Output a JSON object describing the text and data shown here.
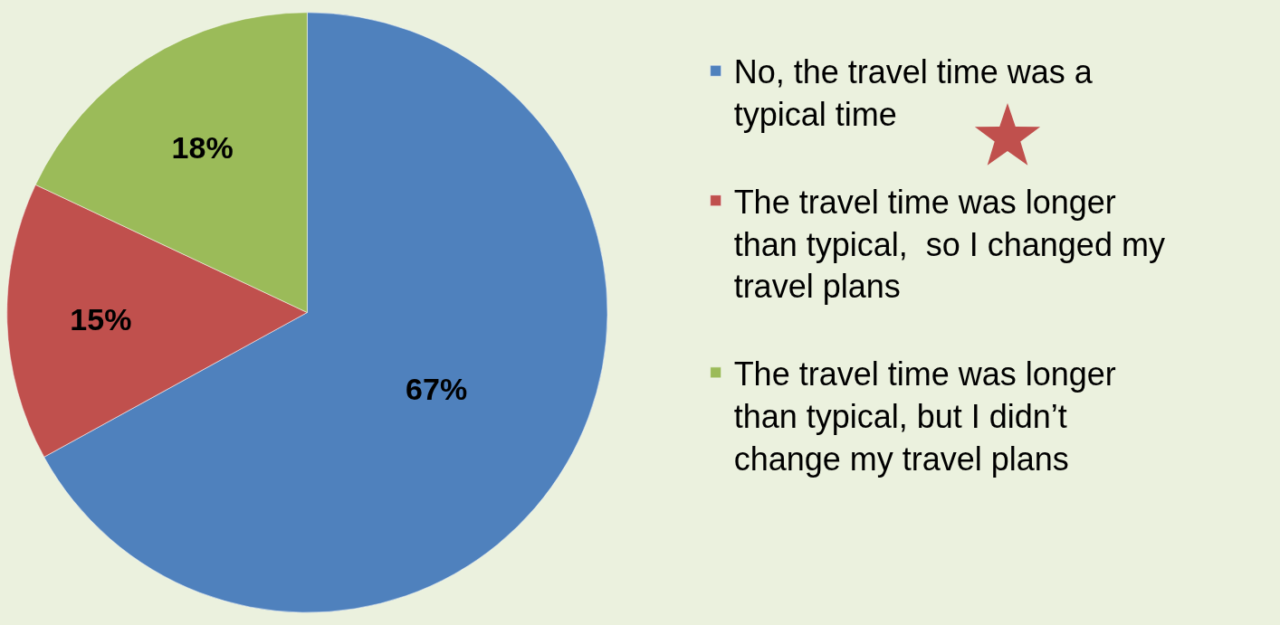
{
  "chart_data": {
    "type": "pie",
    "categories": [
      "No, the travel time was a typical time",
      "The travel time was longer than typical,  so I changed my travel plans",
      "The travel time was longer than typical, but I didn’t change my travel plans"
    ],
    "values": [
      67,
      15,
      18
    ],
    "colors": [
      "#4f81bd",
      "#c0504d",
      "#9bbb59"
    ],
    "value_labels": [
      "67%",
      "15%",
      "18%"
    ],
    "legend": "right"
  }
}
